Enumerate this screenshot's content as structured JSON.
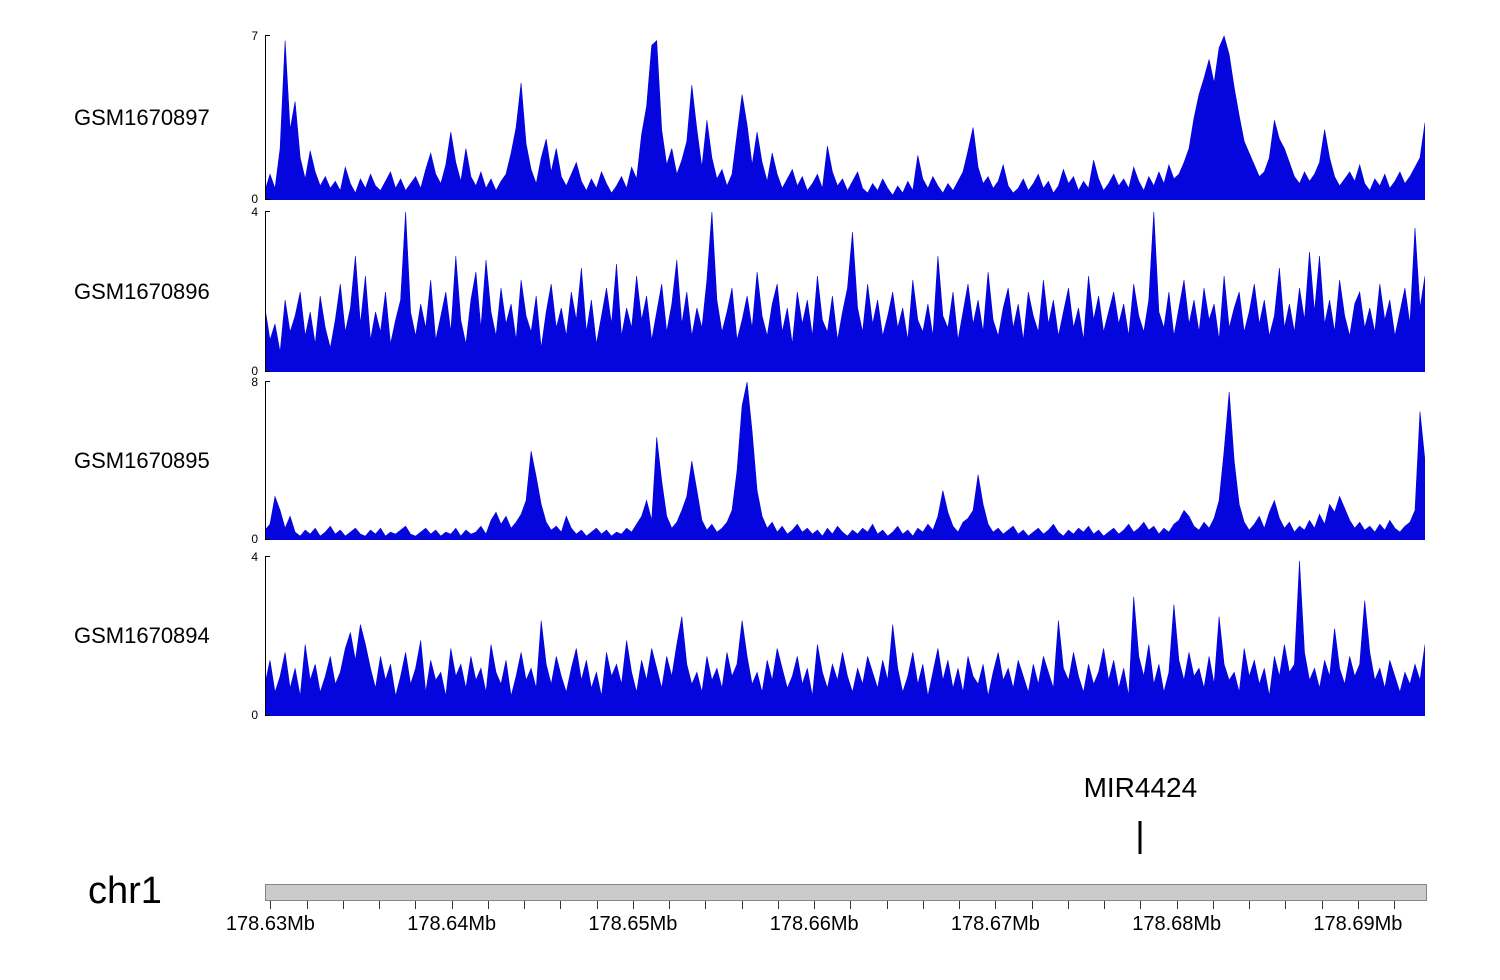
{
  "chart_data": {
    "type": "area",
    "subtype": "genome-browser-coverage-tracks",
    "title": "",
    "signal_color": "#0505dd",
    "series": [
      {
        "name": "GSM1670897",
        "ymin": 0,
        "ymax": 7,
        "values": [
          0.4,
          1.1,
          0.5,
          2.2,
          6.8,
          3.0,
          4.2,
          1.8,
          0.9,
          2.1,
          1.2,
          0.6,
          1.0,
          0.5,
          0.8,
          0.4,
          1.4,
          0.7,
          0.3,
          0.9,
          0.5,
          1.1,
          0.6,
          0.4,
          0.8,
          1.2,
          0.5,
          0.9,
          0.4,
          0.7,
          1.0,
          0.5,
          1.3,
          2.0,
          1.1,
          0.7,
          1.5,
          2.9,
          1.6,
          0.8,
          2.2,
          1.0,
          0.6,
          1.2,
          0.5,
          0.9,
          0.4,
          0.8,
          1.1,
          2.0,
          3.1,
          5.0,
          2.4,
          1.3,
          0.7,
          1.8,
          2.6,
          1.2,
          2.2,
          1.0,
          0.6,
          1.1,
          1.6,
          0.8,
          0.4,
          0.9,
          0.5,
          1.2,
          0.7,
          0.3,
          0.6,
          1.0,
          0.5,
          1.4,
          0.9,
          2.8,
          4.0,
          6.6,
          6.8,
          3.0,
          1.5,
          2.2,
          1.1,
          1.7,
          2.5,
          4.9,
          3.0,
          1.4,
          3.4,
          1.8,
          0.9,
          1.3,
          0.6,
          1.1,
          2.8,
          4.5,
          3.2,
          1.5,
          2.9,
          1.6,
          0.8,
          2.0,
          1.1,
          0.5,
          0.9,
          1.3,
          0.6,
          1.0,
          0.4,
          0.7,
          1.1,
          0.5,
          2.3,
          1.2,
          0.6,
          0.9,
          0.4,
          0.8,
          1.2,
          0.5,
          0.3,
          0.7,
          0.4,
          0.9,
          0.5,
          0.2,
          0.6,
          0.3,
          0.8,
          0.4,
          1.9,
          0.9,
          0.5,
          1.0,
          0.6,
          0.3,
          0.7,
          0.4,
          0.8,
          1.2,
          2.1,
          3.1,
          1.4,
          0.7,
          1.0,
          0.5,
          0.8,
          1.5,
          0.6,
          0.3,
          0.5,
          0.9,
          0.4,
          0.7,
          1.1,
          0.5,
          0.8,
          0.3,
          0.6,
          1.3,
          0.7,
          1.0,
          0.4,
          0.8,
          0.5,
          1.7,
          0.9,
          0.4,
          0.7,
          1.1,
          0.6,
          0.9,
          0.5,
          1.4,
          0.8,
          0.4,
          1.0,
          0.6,
          1.2,
          0.7,
          1.5,
          0.9,
          1.1,
          1.6,
          2.2,
          3.5,
          4.5,
          5.2,
          6.0,
          5.0,
          6.5,
          7.0,
          6.2,
          4.8,
          3.6,
          2.5,
          2.0,
          1.5,
          1.0,
          1.2,
          1.8,
          3.4,
          2.6,
          2.2,
          1.6,
          1.0,
          0.7,
          1.2,
          0.8,
          1.1,
          1.6,
          3.0,
          1.8,
          1.0,
          0.6,
          0.9,
          1.2,
          0.8,
          1.5,
          0.7,
          0.4,
          0.9,
          0.6,
          1.1,
          0.5,
          0.8,
          1.2,
          0.7,
          1.0,
          1.4,
          1.8,
          3.3
        ]
      },
      {
        "name": "GSM1670896",
        "ymin": 0,
        "ymax": 4,
        "values": [
          1.6,
          0.8,
          1.2,
          0.5,
          1.8,
          1.0,
          1.4,
          2.0,
          0.9,
          1.5,
          0.7,
          1.9,
          1.1,
          0.6,
          1.3,
          2.2,
          1.0,
          1.6,
          2.9,
          1.2,
          2.4,
          0.8,
          1.5,
          1.0,
          2.0,
          0.7,
          1.3,
          1.8,
          4.0,
          1.5,
          0.9,
          1.7,
          1.1,
          2.3,
          0.8,
          1.4,
          2.0,
          1.0,
          2.9,
          1.3,
          0.7,
          1.8,
          2.5,
          1.1,
          2.8,
          1.5,
          0.9,
          2.1,
          1.2,
          1.7,
          0.8,
          2.3,
          1.4,
          1.0,
          1.9,
          0.6,
          1.5,
          2.2,
          1.1,
          1.6,
          0.9,
          2.0,
          1.3,
          2.6,
          1.0,
          1.8,
          0.7,
          1.4,
          2.1,
          1.2,
          2.7,
          0.9,
          1.6,
          1.1,
          2.4,
          1.3,
          1.9,
          0.8,
          1.5,
          2.2,
          1.0,
          1.7,
          2.8,
          1.2,
          2.0,
          0.9,
          1.6,
          1.1,
          2.3,
          4.0,
          1.8,
          1.0,
          1.5,
          2.1,
          0.8,
          1.3,
          1.9,
          1.1,
          2.5,
          1.4,
          0.9,
          1.7,
          2.2,
          1.0,
          1.6,
          0.7,
          2.0,
          1.2,
          1.8,
          0.9,
          2.4,
          1.3,
          1.0,
          1.9,
          0.8,
          1.5,
          2.1,
          3.5,
          1.6,
          1.0,
          2.2,
          1.2,
          1.8,
          0.9,
          1.4,
          2.0,
          1.1,
          1.6,
          0.8,
          2.3,
          1.3,
          1.0,
          1.7,
          0.9,
          2.9,
          1.4,
          1.1,
          2.0,
          0.8,
          1.5,
          2.2,
          1.2,
          1.8,
          1.0,
          2.5,
          1.3,
          0.9,
          1.6,
          2.1,
          1.1,
          1.7,
          0.8,
          2.0,
          1.4,
          1.0,
          2.3,
          1.2,
          1.8,
          0.9,
          1.5,
          2.1,
          1.1,
          1.6,
          0.8,
          2.4,
          1.3,
          1.9,
          1.0,
          1.5,
          2.0,
          1.2,
          1.7,
          0.9,
          2.2,
          1.4,
          1.0,
          1.8,
          4.0,
          1.5,
          1.1,
          2.0,
          0.9,
          1.6,
          2.3,
          1.2,
          1.8,
          1.0,
          2.1,
          1.3,
          1.7,
          0.8,
          2.4,
          1.1,
          1.6,
          2.0,
          1.0,
          1.5,
          2.2,
          1.2,
          1.8,
          0.9,
          1.4,
          2.6,
          1.1,
          1.7,
          1.0,
          2.1,
          1.3,
          3.0,
          1.5,
          2.9,
          1.2,
          1.8,
          1.0,
          2.3,
          1.4,
          0.9,
          1.7,
          2.0,
          1.1,
          1.6,
          1.0,
          2.2,
          1.3,
          1.8,
          0.9,
          1.5,
          2.1,
          1.2,
          3.6,
          1.6,
          2.4
        ]
      },
      {
        "name": "GSM1670895",
        "ymin": 0,
        "ymax": 8,
        "values": [
          0.5,
          0.8,
          2.2,
          1.5,
          0.6,
          1.2,
          0.4,
          0.2,
          0.5,
          0.3,
          0.6,
          0.2,
          0.4,
          0.7,
          0.3,
          0.5,
          0.2,
          0.4,
          0.6,
          0.3,
          0.2,
          0.5,
          0.3,
          0.6,
          0.2,
          0.4,
          0.3,
          0.5,
          0.7,
          0.3,
          0.2,
          0.4,
          0.6,
          0.3,
          0.5,
          0.2,
          0.4,
          0.3,
          0.6,
          0.2,
          0.5,
          0.3,
          0.4,
          0.7,
          0.3,
          1.0,
          1.4,
          0.8,
          1.2,
          0.6,
          0.9,
          1.3,
          2.0,
          4.5,
          3.2,
          1.8,
          0.9,
          0.5,
          0.7,
          0.4,
          1.2,
          0.6,
          0.3,
          0.5,
          0.2,
          0.4,
          0.6,
          0.3,
          0.5,
          0.2,
          0.4,
          0.3,
          0.6,
          0.4,
          0.8,
          1.2,
          2.0,
          1.0,
          5.2,
          3.0,
          1.2,
          0.6,
          0.9,
          1.5,
          2.2,
          4.0,
          2.5,
          1.0,
          0.5,
          0.8,
          0.4,
          0.6,
          0.9,
          1.5,
          3.5,
          6.8,
          8.0,
          5.5,
          2.5,
          1.2,
          0.6,
          0.9,
          0.4,
          0.7,
          0.3,
          0.5,
          0.8,
          0.4,
          0.6,
          0.3,
          0.5,
          0.2,
          0.6,
          0.3,
          0.7,
          0.4,
          0.2,
          0.5,
          0.3,
          0.6,
          0.4,
          0.8,
          0.3,
          0.5,
          0.2,
          0.4,
          0.7,
          0.3,
          0.5,
          0.2,
          0.6,
          0.4,
          0.8,
          0.5,
          1.2,
          2.5,
          1.4,
          0.7,
          0.4,
          0.9,
          1.1,
          1.5,
          3.3,
          1.8,
          0.8,
          0.4,
          0.6,
          0.3,
          0.5,
          0.7,
          0.3,
          0.5,
          0.2,
          0.4,
          0.6,
          0.3,
          0.5,
          0.8,
          0.4,
          0.2,
          0.5,
          0.3,
          0.6,
          0.4,
          0.7,
          0.3,
          0.5,
          0.2,
          0.4,
          0.6,
          0.3,
          0.5,
          0.8,
          0.4,
          0.6,
          0.9,
          0.5,
          0.7,
          0.3,
          0.6,
          0.4,
          0.8,
          1.0,
          1.5,
          1.2,
          0.7,
          0.5,
          0.9,
          0.6,
          1.1,
          2.0,
          4.5,
          7.5,
          4.0,
          1.8,
          0.9,
          0.5,
          0.8,
          1.2,
          0.6,
          1.4,
          2.0,
          1.1,
          0.6,
          0.9,
          0.4,
          0.7,
          0.5,
          1.0,
          0.6,
          1.3,
          0.8,
          1.8,
          1.4,
          2.2,
          1.6,
          1.0,
          0.6,
          0.9,
          0.5,
          0.7,
          0.4,
          0.8,
          0.5,
          1.0,
          0.6,
          0.4,
          0.7,
          0.9,
          1.5,
          6.5,
          4.0
        ]
      },
      {
        "name": "GSM1670894",
        "ymin": 0,
        "ymax": 4,
        "values": [
          0.8,
          1.4,
          0.6,
          1.0,
          1.6,
          0.7,
          1.2,
          0.5,
          1.8,
          0.9,
          1.3,
          0.6,
          1.0,
          1.5,
          0.8,
          1.1,
          1.7,
          2.1,
          1.4,
          2.3,
          1.8,
          1.2,
          0.7,
          1.5,
          0.9,
          1.3,
          0.5,
          1.0,
          1.6,
          0.8,
          1.2,
          1.9,
          0.6,
          1.4,
          0.9,
          1.1,
          0.5,
          1.7,
          1.0,
          1.3,
          0.7,
          1.5,
          0.9,
          1.2,
          0.6,
          1.8,
          1.1,
          0.8,
          1.4,
          0.5,
          1.0,
          1.6,
          0.9,
          1.2,
          0.7,
          2.4,
          1.3,
          0.8,
          1.5,
          1.0,
          0.6,
          1.2,
          1.7,
          0.9,
          1.4,
          0.7,
          1.1,
          0.5,
          1.6,
          1.0,
          1.3,
          0.8,
          1.9,
          1.1,
          0.6,
          1.4,
          0.9,
          1.7,
          1.2,
          0.7,
          1.5,
          1.0,
          1.8,
          2.5,
          1.3,
          0.8,
          1.1,
          0.6,
          1.5,
          0.9,
          1.2,
          0.7,
          1.6,
          1.0,
          1.3,
          2.4,
          1.5,
          0.8,
          1.1,
          0.6,
          1.4,
          0.9,
          1.7,
          1.2,
          0.7,
          1.0,
          1.5,
          0.8,
          1.2,
          0.5,
          1.8,
          1.1,
          0.7,
          1.3,
          0.9,
          1.6,
          1.0,
          0.6,
          1.2,
          0.8,
          1.5,
          1.1,
          0.7,
          1.4,
          0.9,
          2.3,
          1.2,
          0.6,
          1.0,
          1.6,
          0.8,
          1.3,
          0.5,
          1.1,
          1.7,
          0.9,
          1.4,
          0.7,
          1.2,
          0.6,
          1.5,
          1.0,
          0.8,
          1.3,
          0.5,
          1.1,
          1.6,
          0.9,
          1.2,
          0.7,
          1.4,
          1.0,
          0.6,
          1.3,
          0.8,
          1.5,
          1.1,
          0.7,
          2.4,
          1.2,
          0.9,
          1.6,
          1.0,
          0.6,
          1.3,
          0.8,
          1.1,
          1.7,
          0.9,
          1.4,
          0.7,
          1.2,
          0.5,
          3.0,
          1.5,
          1.0,
          1.8,
          0.8,
          1.3,
          0.6,
          1.1,
          2.8,
          1.4,
          0.9,
          1.6,
          1.0,
          1.2,
          0.7,
          1.5,
          0.8,
          2.5,
          1.3,
          0.9,
          1.1,
          0.6,
          1.7,
          1.0,
          1.4,
          0.8,
          1.2,
          0.5,
          1.5,
          1.0,
          1.8,
          1.1,
          1.3,
          3.9,
          1.6,
          0.9,
          1.2,
          0.7,
          1.4,
          1.0,
          2.2,
          1.2,
          0.8,
          1.5,
          1.0,
          1.3,
          2.9,
          1.6,
          0.9,
          1.2,
          0.7,
          1.4,
          1.0,
          0.6,
          1.1,
          0.8,
          1.3,
          0.9,
          1.8
        ]
      }
    ],
    "x_axis": {
      "chromosome": "chr1",
      "unit": "Mb",
      "start_mb": 178.6297,
      "end_mb": 178.6937,
      "minor_tick_step_mb": 0.002,
      "major_ticks": [
        {
          "label": "178.63Mb",
          "mb": 178.63
        },
        {
          "label": "178.64Mb",
          "mb": 178.64
        },
        {
          "label": "178.65Mb",
          "mb": 178.65
        },
        {
          "label": "178.66Mb",
          "mb": 178.66
        },
        {
          "label": "178.67Mb",
          "mb": 178.67
        },
        {
          "label": "178.68Mb",
          "mb": 178.68
        },
        {
          "label": "178.69Mb",
          "mb": 178.69
        }
      ],
      "bar_color": "#cbcbcb"
    },
    "annotations": [
      {
        "label": "MIR4424",
        "position_mb": 178.678
      }
    ],
    "legend": "none",
    "grid": false
  }
}
